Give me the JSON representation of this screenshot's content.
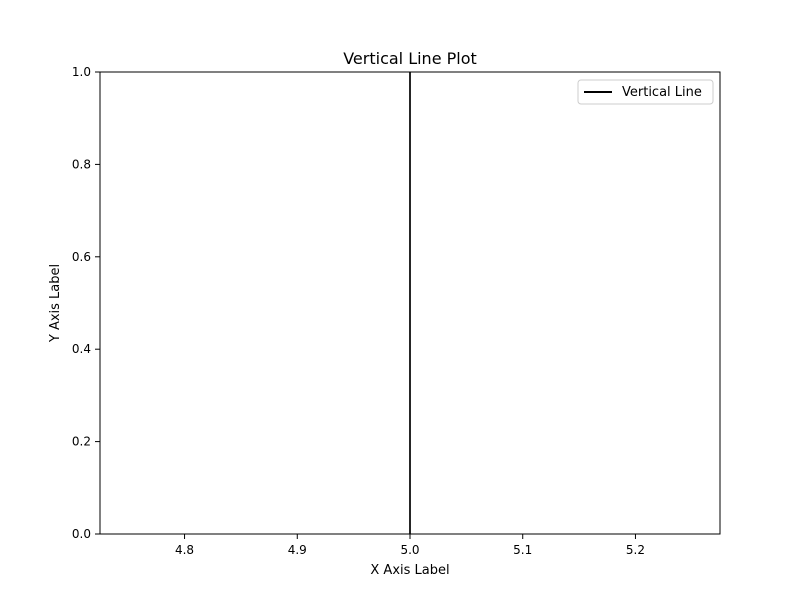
{
  "chart_data": {
    "type": "line",
    "title": "Vertical Line Plot",
    "xlabel": "X Axis Label",
    "ylabel": "Y Axis Label",
    "xlim": [
      4.725,
      5.275
    ],
    "ylim": [
      0.0,
      1.0
    ],
    "x_ticks": [
      4.8,
      4.9,
      5.0,
      5.1,
      5.2
    ],
    "x_tick_labels": [
      "4.8",
      "4.9",
      "5.0",
      "5.1",
      "5.2"
    ],
    "y_ticks": [
      0.0,
      0.2,
      0.4,
      0.6,
      0.8,
      1.0
    ],
    "y_tick_labels": [
      "0.0",
      "0.2",
      "0.4",
      "0.6",
      "0.8",
      "1.0"
    ],
    "grid": false,
    "legend": {
      "placement": "top-right"
    },
    "series": [
      {
        "name": "Vertical Line",
        "color": "#000000",
        "x": [
          5.0,
          5.0
        ],
        "y": [
          0.0,
          1.0
        ]
      }
    ]
  }
}
